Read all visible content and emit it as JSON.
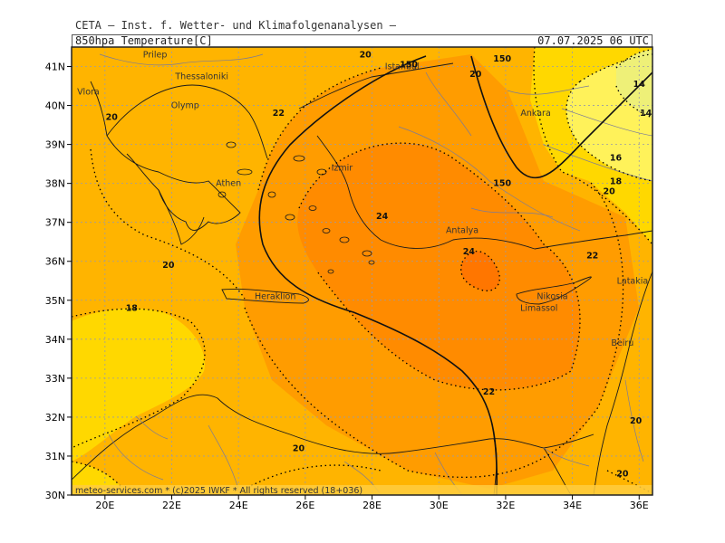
{
  "header": {
    "line1": "CETA — Inst. f. Wetter- und Klimafolgenanalysen —",
    "left_title": "850hpa Temperature[C]",
    "right_title": "07.07.2025 06 UTC"
  },
  "footer": {
    "text": "meteo-services.com * (c)2025 IWKF * All rights reserved (18+036)"
  },
  "map": {
    "lon_range": [
      19,
      36.4
    ],
    "lat_range": [
      30,
      41.5
    ],
    "x_ticks": [
      "20E",
      "22E",
      "24E",
      "26E",
      "28E",
      "30E",
      "32E",
      "34E",
      "36E"
    ],
    "x_tick_values": [
      20,
      22,
      24,
      26,
      28,
      30,
      32,
      34,
      36
    ],
    "y_ticks": [
      "30N",
      "31N",
      "32N",
      "33N",
      "34N",
      "35N",
      "36N",
      "37N",
      "38N",
      "39N",
      "40N",
      "41N"
    ],
    "y_tick_values": [
      30,
      31,
      32,
      33,
      34,
      35,
      36,
      37,
      38,
      39,
      40,
      41
    ],
    "grid": true,
    "colors": {
      "t14": "#eef078",
      "t16": "#fff25a",
      "t18": "#ffd800",
      "t20": "#ffb400",
      "t22": "#ff9c00",
      "t24": "#ff8100",
      "coast": "#1a1a1a",
      "border": "#7a7a9a",
      "contour": "#000000",
      "grid": "#9a9aa8"
    },
    "cities": [
      {
        "name": "Prilep",
        "lon": 21.5,
        "lat": 41.3
      },
      {
        "name": "Thessaloniki",
        "lon": 22.9,
        "lat": 40.75
      },
      {
        "name": "Vlora",
        "lon": 19.5,
        "lat": 40.35
      },
      {
        "name": "Olymp",
        "lon": 22.4,
        "lat": 40.0,
        "highlight": true
      },
      {
        "name": "Athen",
        "lon": 23.7,
        "lat": 38.0
      },
      {
        "name": "Istanbul",
        "lon": 28.9,
        "lat": 41.0
      },
      {
        "name": "Izmir",
        "lon": 27.1,
        "lat": 38.4
      },
      {
        "name": "Antalya",
        "lon": 30.7,
        "lat": 36.8
      },
      {
        "name": "Ankara",
        "lon": 32.9,
        "lat": 39.8
      },
      {
        "name": "Heraklion",
        "lon": 25.1,
        "lat": 35.1
      },
      {
        "name": "Nikosia",
        "lon": 33.4,
        "lat": 35.1
      },
      {
        "name": "Limassol",
        "lon": 33.0,
        "lat": 34.8
      },
      {
        "name": "Latakia",
        "lon": 35.8,
        "lat": 35.5
      },
      {
        "name": "Beiru",
        "lon": 35.5,
        "lat": 33.9
      }
    ],
    "contour_labels": [
      {
        "text": "20",
        "lon": 27.8,
        "lat": 41.3
      },
      {
        "text": "150",
        "lon": 29.1,
        "lat": 41.05
      },
      {
        "text": "150",
        "lon": 31.9,
        "lat": 41.2
      },
      {
        "text": "20",
        "lon": 31.1,
        "lat": 40.8
      },
      {
        "text": "14",
        "lon": 36.0,
        "lat": 40.55
      },
      {
        "text": "14",
        "lon": 36.2,
        "lat": 39.8
      },
      {
        "text": "20",
        "lon": 20.2,
        "lat": 39.7
      },
      {
        "text": "22",
        "lon": 25.2,
        "lat": 39.8
      },
      {
        "text": "16",
        "lon": 35.3,
        "lat": 38.65
      },
      {
        "text": "150",
        "lon": 31.9,
        "lat": 38.0
      },
      {
        "text": "18",
        "lon": 35.3,
        "lat": 38.05
      },
      {
        "text": "20",
        "lon": 35.1,
        "lat": 37.8
      },
      {
        "text": "24",
        "lon": 28.3,
        "lat": 37.15
      },
      {
        "text": "24",
        "lon": 30.9,
        "lat": 36.25
      },
      {
        "text": "22",
        "lon": 34.6,
        "lat": 36.15
      },
      {
        "text": "20",
        "lon": 21.9,
        "lat": 35.9
      },
      {
        "text": "18",
        "lon": 20.8,
        "lat": 34.8
      },
      {
        "text": "22",
        "lon": 31.5,
        "lat": 32.65
      },
      {
        "text": "20",
        "lon": 35.9,
        "lat": 31.9
      },
      {
        "text": "20",
        "lon": 25.8,
        "lat": 31.2
      },
      {
        "text": "20",
        "lon": 35.5,
        "lat": 30.55
      }
    ]
  }
}
